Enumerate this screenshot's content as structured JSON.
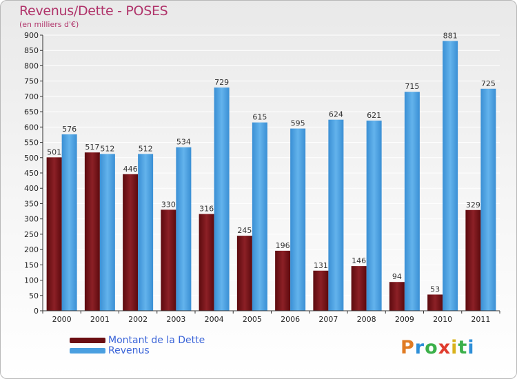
{
  "title": "Revenus/Dette - POSES",
  "subtitle": "(en milliers d'€)",
  "brand": {
    "letters": [
      "P",
      "r",
      "o",
      "x",
      "i",
      "t",
      "i"
    ],
    "colors": [
      "#e07b22",
      "#2e8fd8",
      "#3bb04a",
      "#e03c2e",
      "#d9b21c",
      "#3bb04a",
      "#2e8fd8"
    ]
  },
  "colors": {
    "dette": "#7a1418",
    "revenus": "#4a9fe0",
    "axis": "#333333",
    "grid": "#ffffff"
  },
  "legend": [
    {
      "label": "Montant de la Dette",
      "color": "#6b0e12"
    },
    {
      "label": "Revenus",
      "color": "#4a9fe0"
    }
  ],
  "chart_data": {
    "type": "bar",
    "title": "Revenus/Dette - POSES",
    "ylabel": "(en milliers d'€)",
    "xlabel": "",
    "categories": [
      "2000",
      "2001",
      "2002",
      "2003",
      "2004",
      "2005",
      "2006",
      "2007",
      "2008",
      "2009",
      "2010",
      "2011"
    ],
    "series": [
      {
        "name": "Montant de la Dette",
        "values": [
          501,
          517,
          446,
          330,
          316,
          245,
          196,
          131,
          146,
          94,
          53,
          329
        ]
      },
      {
        "name": "Revenus",
        "values": [
          576,
          512,
          512,
          534,
          729,
          615,
          595,
          624,
          621,
          715,
          881,
          725
        ]
      }
    ],
    "ylim": [
      0,
      900
    ],
    "yticks": [
      0,
      50,
      100,
      150,
      200,
      250,
      300,
      350,
      400,
      450,
      500,
      550,
      600,
      650,
      700,
      750,
      800,
      850,
      900
    ],
    "grid": true,
    "legend_position": "bottom-left"
  }
}
